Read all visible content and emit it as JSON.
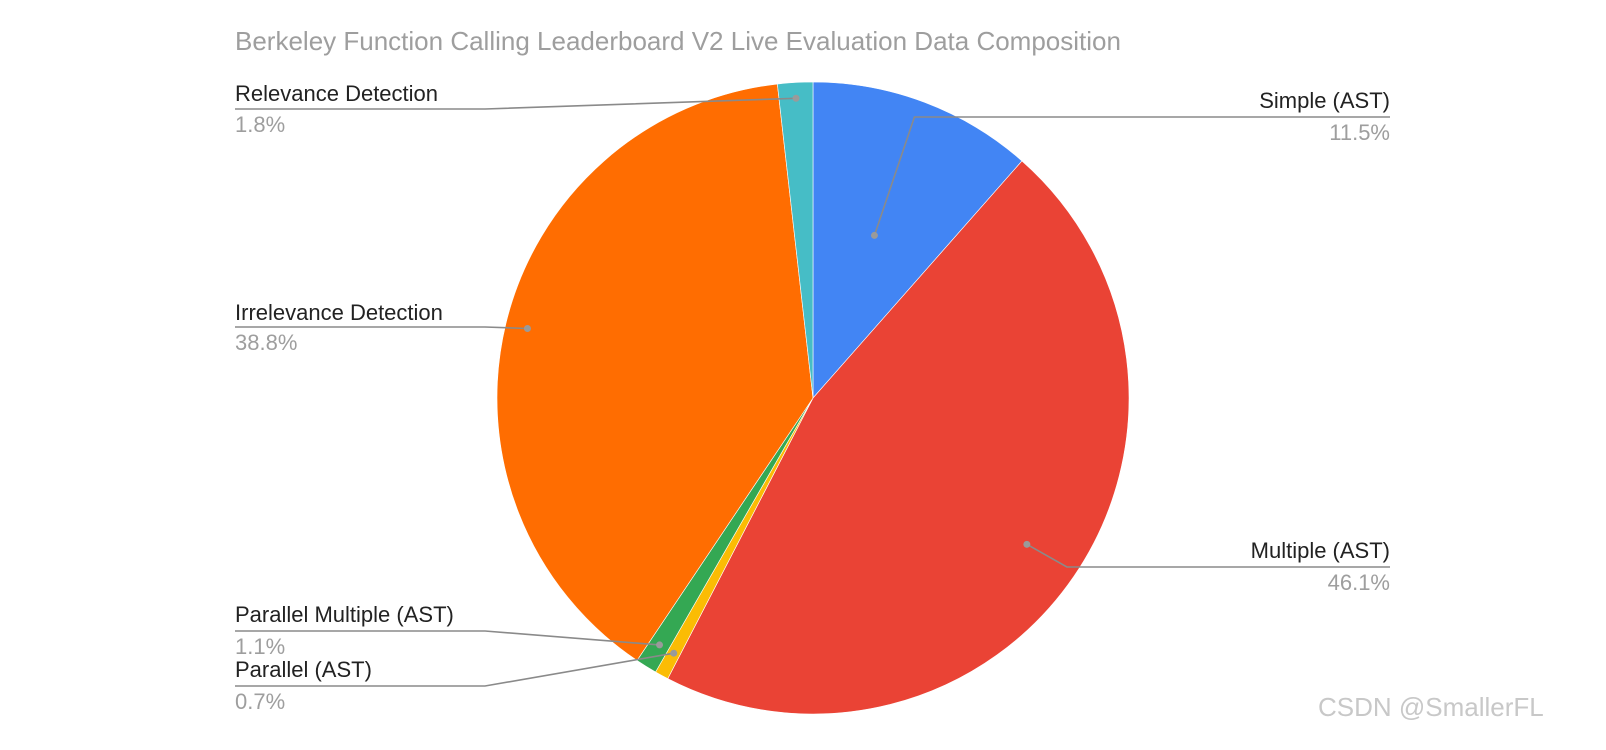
{
  "chart_data": {
    "type": "pie",
    "title": "Berkeley Function Calling Leaderboard V2 Live Evaluation Data Composition",
    "slices": [
      {
        "label": "Simple (AST)",
        "value": 11.5,
        "value_label": "11.5%",
        "color": "#4285f4"
      },
      {
        "label": "Multiple (AST)",
        "value": 46.1,
        "value_label": "46.1%",
        "color": "#ea4335"
      },
      {
        "label": "Parallel (AST)",
        "value": 0.7,
        "value_label": "0.7%",
        "color": "#fbbc04"
      },
      {
        "label": "Parallel Multiple (AST)",
        "value": 1.1,
        "value_label": "1.1%",
        "color": "#34a853"
      },
      {
        "label": "Irrelevance Detection",
        "value": 38.8,
        "value_label": "38.8%",
        "color": "#ff6d01"
      },
      {
        "label": "Relevance Detection",
        "value": 1.8,
        "value_label": "1.8%",
        "color": "#46bdc6"
      }
    ],
    "start_angle": "12 o'clock",
    "direction": "clockwise"
  },
  "watermark": "CSDN @SmallerFL"
}
